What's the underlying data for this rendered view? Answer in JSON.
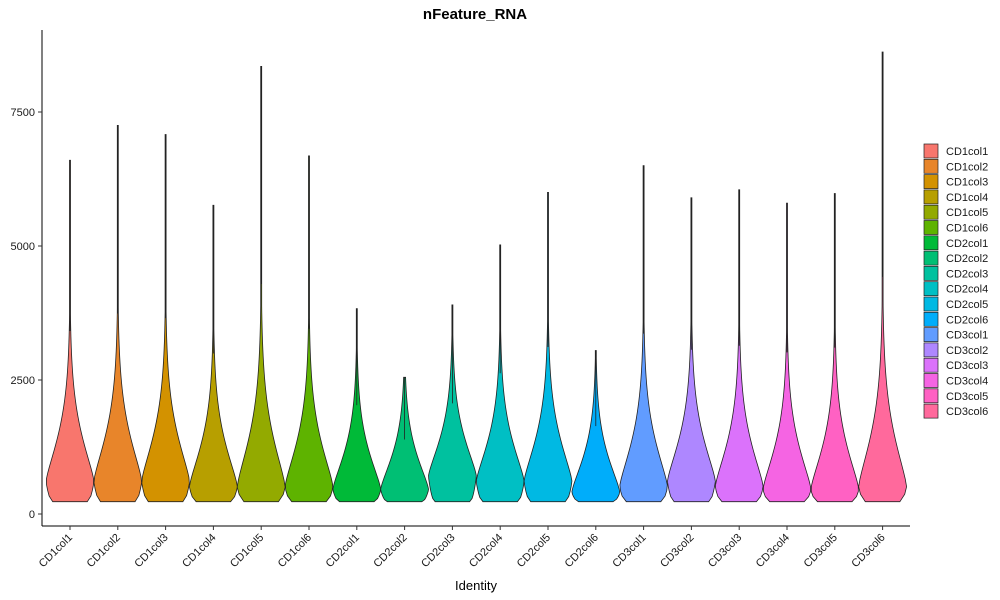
{
  "chart_data": {
    "type": "violin",
    "title": "nFeature_RNA",
    "xlabel": "Identity",
    "ylabel": "",
    "ylim": [
      -300,
      8900
    ],
    "y_ticks": [
      0,
      2500,
      5000,
      7500
    ],
    "y_tick_labels": [
      "0",
      "2500",
      "5000",
      "7500"
    ],
    "legend_position": "right",
    "grid": false,
    "categories": [
      "CD1col1",
      "CD1col2",
      "CD1col3",
      "CD1col4",
      "CD1col5",
      "CD1col6",
      "CD2col1",
      "CD2col2",
      "CD2col3",
      "CD2col4",
      "CD2col5",
      "CD2col6",
      "CD3col1",
      "CD3col2",
      "CD3col3",
      "CD3col4",
      "CD3col5",
      "CD3col6"
    ],
    "colors": [
      "#F8766D",
      "#E58700",
      "#C99800",
      "#A3A500",
      "#6BB100",
      "#00BA38",
      "#00BF7D",
      "#00C0AF",
      "#00BCD8",
      "#00B0F6",
      "#619CFF",
      "#B983FF",
      "#E76BF3",
      "#FD61D1",
      "#FF67A4",
      "#F8766D",
      "#E88526",
      "#D39200"
    ],
    "series": [
      {
        "name": "CD1col1",
        "color": "#F8766D",
        "min": 230,
        "max": 6600,
        "mode": 600
      },
      {
        "name": "CD1col2",
        "color": "#E8852A",
        "min": 230,
        "max": 7250,
        "mode": 600
      },
      {
        "name": "CD1col3",
        "color": "#D39200",
        "min": 230,
        "max": 7080,
        "mode": 600
      },
      {
        "name": "CD1col4",
        "color": "#B79F00",
        "min": 230,
        "max": 5760,
        "mode": 500
      },
      {
        "name": "CD1col5",
        "color": "#93AA00",
        "min": 230,
        "max": 8350,
        "mode": 500
      },
      {
        "name": "CD1col6",
        "color": "#5EB300",
        "min": 230,
        "max": 6680,
        "mode": 500
      },
      {
        "name": "CD2col1",
        "color": "#00BA38",
        "min": 230,
        "max": 3830,
        "mode": 450
      },
      {
        "name": "CD2col2",
        "color": "#00BF74",
        "min": 230,
        "max": 2550,
        "mode": 450
      },
      {
        "name": "CD2col3",
        "color": "#00C19F",
        "min": 230,
        "max": 3900,
        "mode": 700
      },
      {
        "name": "CD2col4",
        "color": "#00BFC4",
        "min": 230,
        "max": 5020,
        "mode": 600
      },
      {
        "name": "CD2col5",
        "color": "#00B9E3",
        "min": 230,
        "max": 6000,
        "mode": 600
      },
      {
        "name": "CD2col6",
        "color": "#00ADFA",
        "min": 230,
        "max": 3050,
        "mode": 400
      },
      {
        "name": "CD3col1",
        "color": "#619CFF",
        "min": 230,
        "max": 6500,
        "mode": 500
      },
      {
        "name": "CD3col2",
        "color": "#AE87FF",
        "min": 230,
        "max": 5900,
        "mode": 600
      },
      {
        "name": "CD3col3",
        "color": "#DB72FB",
        "min": 230,
        "max": 6050,
        "mode": 500
      },
      {
        "name": "CD3col4",
        "color": "#F564E3",
        "min": 230,
        "max": 5800,
        "mode": 450
      },
      {
        "name": "CD3col5",
        "color": "#FF61C3",
        "min": 230,
        "max": 5980,
        "mode": 450
      },
      {
        "name": "CD3col6",
        "color": "#FF699C",
        "min": 230,
        "max": 8620,
        "mode": 500
      }
    ]
  }
}
